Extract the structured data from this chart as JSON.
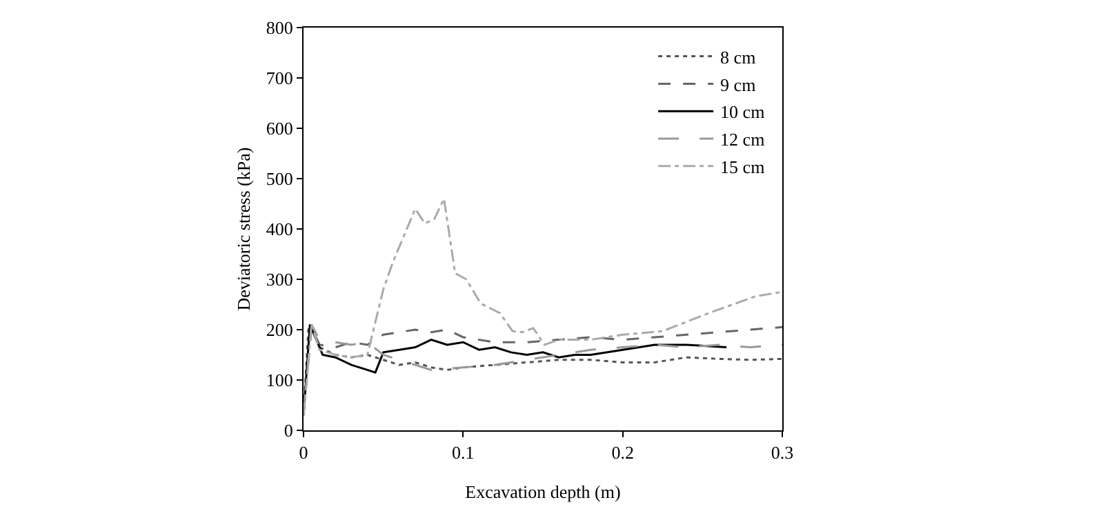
{
  "chart_data": {
    "type": "line",
    "xlabel": "Excavation depth (m)",
    "ylabel": "Deviatoric stress (kPa)",
    "xlim": [
      0,
      0.3
    ],
    "xticks": [
      0,
      0.1,
      0.2,
      0.3
    ],
    "ylim": [
      0,
      800
    ],
    "yticks": [
      0,
      100,
      200,
      300,
      400,
      500,
      600,
      700,
      800
    ],
    "grid": false,
    "legend": "top right",
    "marker": "none",
    "series": [
      {
        "name": "8 cm",
        "color": "#555555",
        "line_style": "dotted",
        "x": [
          0,
          0.003,
          0.005,
          0.01,
          0.02,
          0.03,
          0.04,
          0.05,
          0.06,
          0.07,
          0.08,
          0.09,
          0.1,
          0.12,
          0.14,
          0.16,
          0.18,
          0.2,
          0.22,
          0.24,
          0.26,
          0.28,
          0.3
        ],
        "values": [
          30,
          200,
          210,
          165,
          150,
          145,
          150,
          140,
          130,
          135,
          125,
          120,
          125,
          130,
          135,
          140,
          140,
          135,
          135,
          145,
          142,
          140,
          142
        ]
      },
      {
        "name": "9 cm",
        "color": "#666666",
        "line_style": "dashed",
        "x": [
          0,
          0.005,
          0.01,
          0.02,
          0.03,
          0.04,
          0.05,
          0.06,
          0.07,
          0.08,
          0.09,
          0.1,
          0.12,
          0.14,
          0.16,
          0.18,
          0.2,
          0.22,
          0.24,
          0.26,
          0.28,
          0.3
        ],
        "values": [
          30,
          205,
          170,
          165,
          175,
          170,
          190,
          195,
          200,
          195,
          200,
          185,
          175,
          175,
          180,
          185,
          180,
          185,
          190,
          195,
          200,
          205
        ]
      },
      {
        "name": "10 cm",
        "color": "#000000",
        "line_style": "solid",
        "x": [
          0,
          0.004,
          0.008,
          0.012,
          0.02,
          0.03,
          0.04,
          0.045,
          0.05,
          0.06,
          0.07,
          0.08,
          0.085,
          0.09,
          0.1,
          0.11,
          0.12,
          0.13,
          0.14,
          0.15,
          0.16,
          0.17,
          0.18,
          0.2,
          0.22,
          0.24,
          0.265
        ],
        "values": [
          30,
          210,
          180,
          150,
          145,
          130,
          120,
          115,
          155,
          160,
          165,
          180,
          175,
          170,
          175,
          160,
          165,
          155,
          150,
          155,
          145,
          150,
          150,
          160,
          170,
          170,
          165
        ]
      },
      {
        "name": "12 cm",
        "color": "#999999",
        "line_style": "longdash",
        "x": [
          0,
          0.005,
          0.01,
          0.02,
          0.03,
          0.04,
          0.05,
          0.06,
          0.08,
          0.1,
          0.12,
          0.14,
          0.16,
          0.18,
          0.2,
          0.22,
          0.24,
          0.26,
          0.28,
          0.3
        ],
        "values": [
          30,
          210,
          180,
          175,
          170,
          175,
          150,
          140,
          120,
          125,
          130,
          140,
          150,
          160,
          165,
          170,
          165,
          170,
          165,
          170
        ]
      },
      {
        "name": "15 cm",
        "color": "#aaaaaa",
        "line_style": "dashdot",
        "x": [
          0,
          0.005,
          0.01,
          0.02,
          0.03,
          0.04,
          0.05,
          0.056,
          0.07,
          0.076,
          0.082,
          0.088,
          0.095,
          0.102,
          0.111,
          0.123,
          0.131,
          0.137,
          0.144,
          0.151,
          0.16,
          0.18,
          0.2,
          0.225,
          0.254,
          0.283,
          0.3
        ],
        "values": [
          30,
          210,
          160,
          150,
          145,
          150,
          280,
          334,
          440,
          411,
          420,
          460,
          312,
          300,
          252,
          233,
          197,
          195,
          203,
          170,
          180,
          180,
          190,
          197,
          233,
          266,
          275
        ]
      }
    ]
  }
}
